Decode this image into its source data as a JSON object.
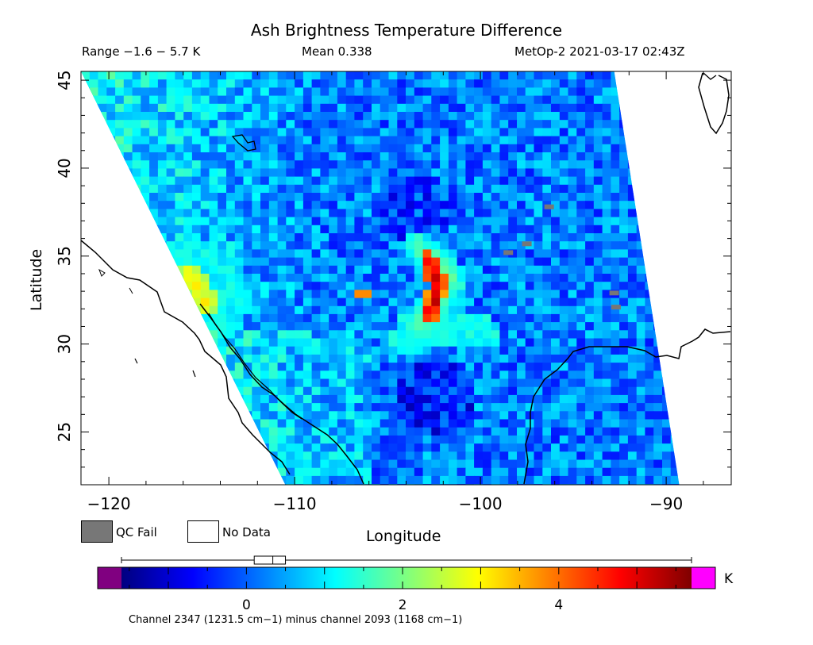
{
  "header": {
    "title": "Ash Brightness Temperature Difference",
    "range_text": "Range −1.6 − 5.7 K",
    "mean_text": "Mean 0.338",
    "sat_text": "MetOp-2 2021-03-17 02:43Z"
  },
  "legend": {
    "qc_fail": "QC Fail",
    "no_data": "No Data",
    "qc_color": "#777777",
    "nodata_color": "#ffffff"
  },
  "colorbar": {
    "unit": "K",
    "ticks": [
      0,
      2,
      4
    ],
    "range": [
      -1.6,
      5.7
    ],
    "under_color": "#800080",
    "over_color": "#ff00ff",
    "stops": [
      "#00007f",
      "#0000ff",
      "#007fff",
      "#00ffff",
      "#7fff7f",
      "#ffff00",
      "#ff7f00",
      "#ff0000",
      "#7f0000"
    ],
    "mean": 0.338,
    "box_range": [
      0.1,
      0.5
    ],
    "whisker_range": [
      -1.6,
      5.7
    ],
    "footnote": "Channel 2347 (1231.5 cm−1) minus channel 2093 (1168 cm−1)"
  },
  "chart_data": {
    "type": "heatmap",
    "title": "Ash Brightness Temperature Difference",
    "xlabel": "Longitude",
    "ylabel": "Latitude",
    "xlim": [
      -121.5,
      -86.5
    ],
    "ylim": [
      22,
      45.5
    ],
    "xticks": [
      -120,
      -110,
      -100,
      -90
    ],
    "yticks": [
      25,
      30,
      35,
      40,
      45
    ],
    "value_unit": "K",
    "value_range": [
      -1.6,
      5.7
    ],
    "mean": 0.338,
    "background_value": 0.2,
    "swath_corners": [
      [
        -121.5,
        45.5
      ],
      [
        -92.8,
        45.5
      ],
      [
        -89.3,
        22
      ],
      [
        -110.5,
        22
      ]
    ],
    "features": [
      {
        "name": "ash plume core",
        "lon_lat": [
          [
            -102.8,
            34.8
          ],
          [
            -102.5,
            34.0
          ],
          [
            -102.3,
            33.3
          ],
          [
            -102.5,
            32.3
          ],
          [
            -102.7,
            31.7
          ]
        ],
        "value": 5.2
      },
      {
        "name": "ash plume outer",
        "lon_lat": [
          [
            -103.3,
            35.5
          ],
          [
            -102.2,
            34.5
          ],
          [
            -101.6,
            33.5
          ],
          [
            -102.2,
            32.2
          ],
          [
            -103.2,
            31.2
          ]
        ],
        "value": 2.0
      },
      {
        "name": "cyan band",
        "lon_lat": [
          [
            -104.0,
            31.0
          ],
          [
            -100.0,
            31.0
          ],
          [
            -99.5,
            30.3
          ],
          [
            -104.5,
            30.2
          ]
        ],
        "value": 1.2
      },
      {
        "name": "west yellow patch",
        "lon_lat": [
          [
            -115.6,
            33.9
          ],
          [
            -114.8,
            32.2
          ]
        ],
        "value": 3.0
      },
      {
        "name": "small patch",
        "lon_lat": [
          [
            -106.3,
            32.8
          ]
        ],
        "value": 3.8
      }
    ],
    "qc_fail_pixels": [
      [
        -96.3,
        37.8
      ],
      [
        -98.5,
        35.2
      ],
      [
        -97.5,
        35.7
      ],
      [
        -92.8,
        32.9
      ],
      [
        -92.7,
        32.1
      ]
    ]
  }
}
